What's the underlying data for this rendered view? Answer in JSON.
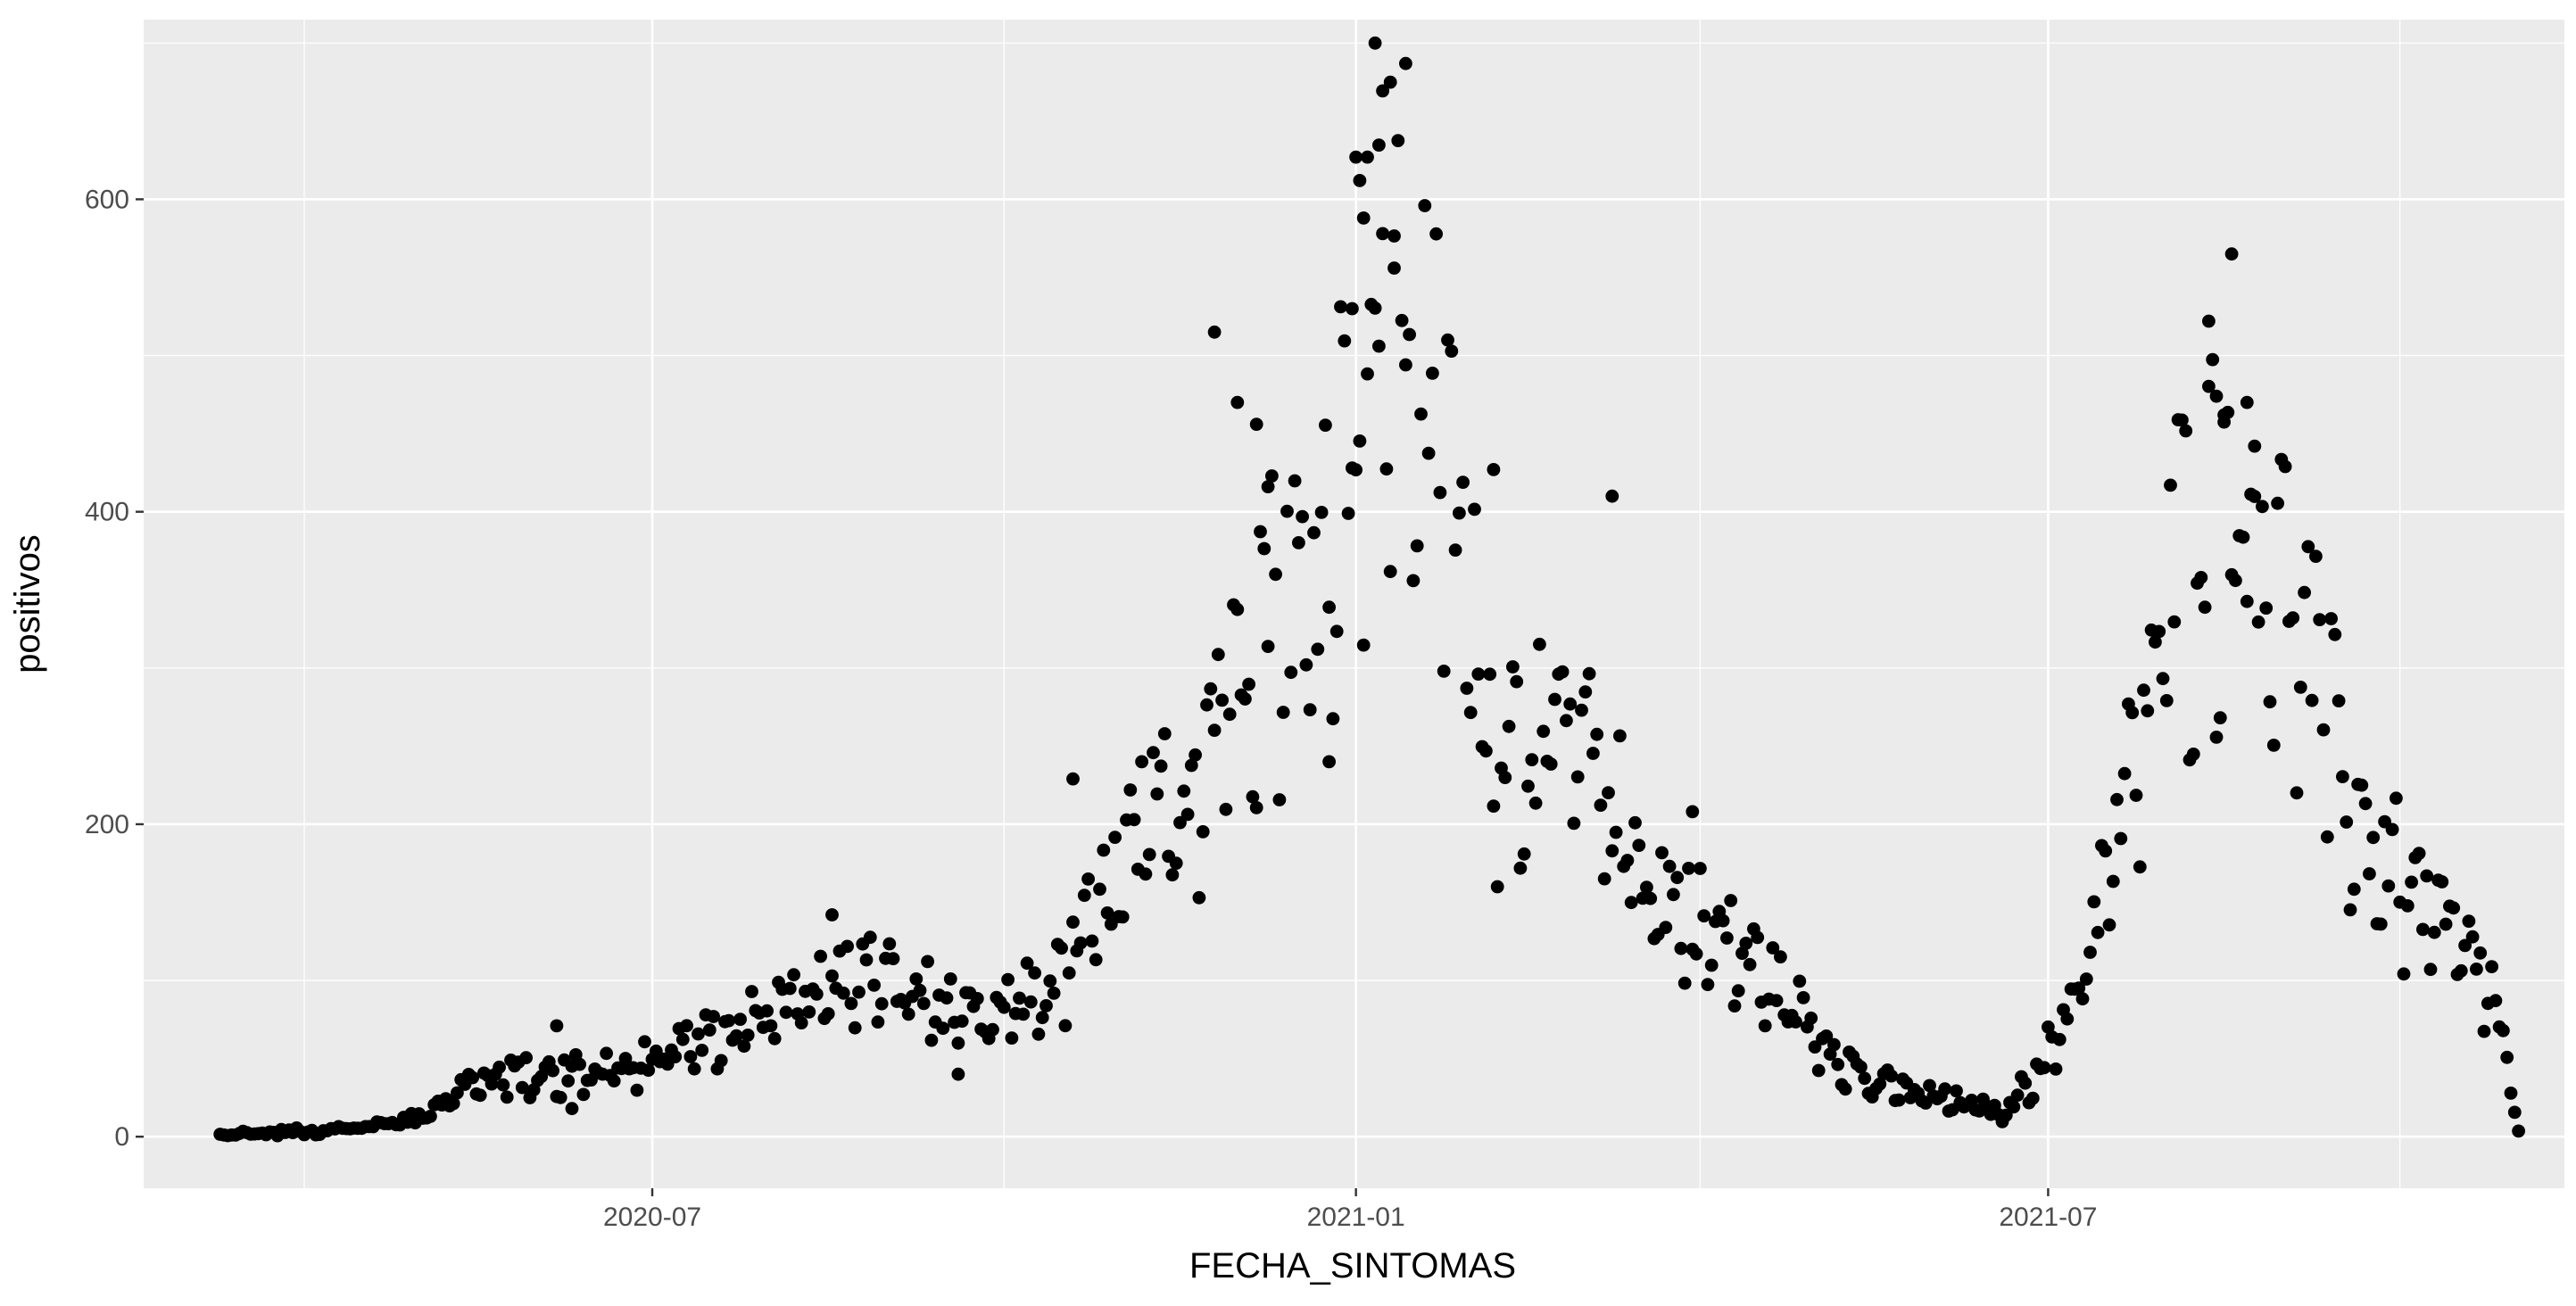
{
  "chart_data": {
    "type": "scatter",
    "title": "",
    "xlabel": "FECHA_SINTOMAS",
    "ylabel": "positivos",
    "x_ticks": [
      "2020-07",
      "2021-01",
      "2021-07"
    ],
    "y_ticks": [
      0,
      200,
      400,
      600
    ],
    "xlim": [
      "2020-02-19",
      "2021-11-13"
    ],
    "ylim": [
      -33,
      715
    ],
    "grid": true,
    "legend": "none",
    "colors": {
      "panel": "#ebebeb",
      "grid": "#ffffff",
      "point": "#000000",
      "tick_label": "#4d4d4d"
    },
    "segments": [
      {
        "from": "2020-03-10",
        "to": "2020-04-10",
        "from_value": 1,
        "to_value": 4
      },
      {
        "from": "2020-04-10",
        "to": "2020-05-01",
        "from_value": 4,
        "to_value": 12
      },
      {
        "from": "2020-05-01",
        "to": "2020-05-15",
        "from_value": 12,
        "to_value": 38
      },
      {
        "from": "2020-05-15",
        "to": "2020-06-15",
        "from_value": 38,
        "to_value": 40
      },
      {
        "from": "2020-06-15",
        "to": "2020-07-01",
        "from_value": 40,
        "to_value": 48
      },
      {
        "from": "2020-07-01",
        "to": "2020-08-01",
        "from_value": 48,
        "to_value": 80
      },
      {
        "from": "2020-08-01",
        "to": "2020-08-25",
        "from_value": 80,
        "to_value": 105
      },
      {
        "from": "2020-08-25",
        "to": "2020-09-10",
        "from_value": 105,
        "to_value": 90
      },
      {
        "from": "2020-09-10",
        "to": "2020-09-25",
        "from_value": 90,
        "to_value": 70
      },
      {
        "from": "2020-09-25",
        "to": "2020-10-15",
        "from_value": 70,
        "to_value": 100
      },
      {
        "from": "2020-10-15",
        "to": "2020-11-01",
        "from_value": 100,
        "to_value": 170
      },
      {
        "from": "2020-11-01",
        "to": "2020-11-20",
        "from_value": 170,
        "to_value": 240
      },
      {
        "from": "2020-11-20",
        "to": "2020-12-05",
        "from_value": 240,
        "to_value": 340
      },
      {
        "from": "2020-12-05",
        "to": "2020-12-20",
        "from_value": 340,
        "to_value": 350
      },
      {
        "from": "2020-12-20",
        "to": "2021-01-01",
        "from_value": 350,
        "to_value": 480
      },
      {
        "from": "2021-01-01",
        "to": "2021-01-12",
        "from_value": 480,
        "to_value": 560
      },
      {
        "from": "2021-01-12",
        "to": "2021-01-25",
        "from_value": 560,
        "to_value": 430
      },
      {
        "from": "2021-01-25",
        "to": "2021-02-05",
        "from_value": 430,
        "to_value": 260
      },
      {
        "from": "2021-02-05",
        "to": "2021-03-01",
        "from_value": 260,
        "to_value": 250
      },
      {
        "from": "2021-03-01",
        "to": "2021-03-20",
        "from_value": 250,
        "to_value": 160
      },
      {
        "from": "2021-03-20",
        "to": "2021-04-15",
        "from_value": 160,
        "to_value": 110
      },
      {
        "from": "2021-04-15",
        "to": "2021-05-15",
        "from_value": 110,
        "to_value": 35
      },
      {
        "from": "2021-05-15",
        "to": "2021-06-20",
        "from_value": 35,
        "to_value": 15
      },
      {
        "from": "2021-06-20",
        "to": "2021-07-05",
        "from_value": 15,
        "to_value": 70
      },
      {
        "from": "2021-07-05",
        "to": "2021-07-20",
        "from_value": 70,
        "to_value": 200
      },
      {
        "from": "2021-07-20",
        "to": "2021-08-05",
        "from_value": 200,
        "to_value": 380
      },
      {
        "from": "2021-08-05",
        "to": "2021-08-20",
        "from_value": 380,
        "to_value": 420
      },
      {
        "from": "2021-08-20",
        "to": "2021-09-05",
        "from_value": 420,
        "to_value": 330
      },
      {
        "from": "2021-09-05",
        "to": "2021-09-20",
        "from_value": 330,
        "to_value": 200
      },
      {
        "from": "2021-09-20",
        "to": "2021-10-10",
        "from_value": 200,
        "to_value": 140
      },
      {
        "from": "2021-10-10",
        "to": "2021-10-25",
        "from_value": 140,
        "to_value": 95
      },
      {
        "from": "2021-10-25",
        "to": "2021-11-01",
        "from_value": 95,
        "to_value": 5
      }
    ],
    "outliers": [
      [
        "2021-01-06",
        700
      ],
      [
        "2021-01-10",
        675
      ],
      [
        "2021-01-04",
        627
      ],
      [
        "2021-01-01",
        627
      ],
      [
        "2021-01-02",
        612
      ],
      [
        "2021-01-08",
        578
      ],
      [
        "2021-01-11",
        556
      ],
      [
        "2021-01-03",
        588
      ],
      [
        "2020-11-25",
        515
      ],
      [
        "2020-12-31",
        530
      ],
      [
        "2021-01-14",
        494
      ],
      [
        "2021-01-07",
        506
      ],
      [
        "2021-08-18",
        565
      ],
      [
        "2021-08-12",
        522
      ],
      [
        "2021-08-14",
        474
      ],
      [
        "2021-08-16",
        462
      ],
      [
        "2021-08-22",
        470
      ],
      [
        "2021-08-24",
        442
      ],
      [
        "2021-03-09",
        410
      ],
      [
        "2021-02-06",
        427
      ],
      [
        "2020-12-01",
        470
      ],
      [
        "2020-12-06",
        456
      ],
      [
        "2020-12-09",
        416
      ],
      [
        "2021-03-30",
        208
      ],
      [
        "2020-08-17",
        142
      ],
      [
        "2020-10-19",
        229
      ],
      [
        "2020-12-25",
        240
      ],
      [
        "2020-09-19",
        40
      ],
      [
        "2020-06-06",
        71
      ],
      [
        "2020-06-10",
        18
      ]
    ]
  }
}
